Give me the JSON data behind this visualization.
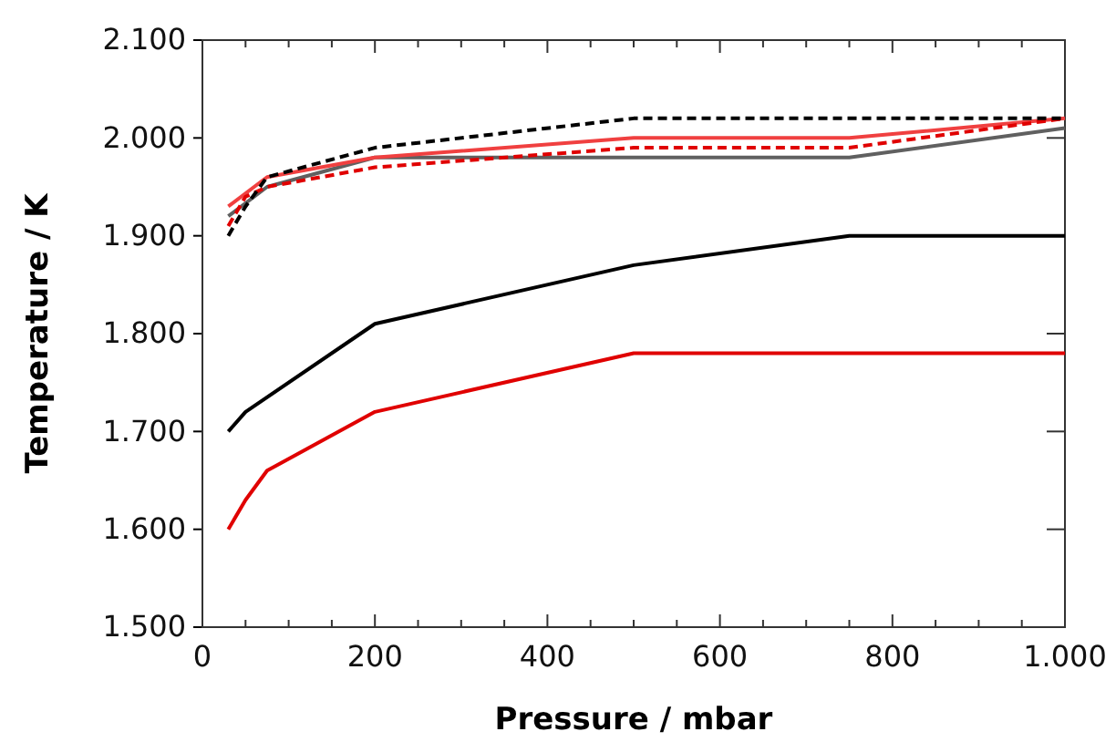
{
  "chart_data": {
    "type": "line",
    "xlabel": "Pressure / mbar",
    "ylabel": "Temperature / K",
    "xlim": [
      0,
      1000
    ],
    "ylim": [
      1500,
      2100
    ],
    "xticks": [
      0,
      {
        "value": 50,
        "label": null
      },
      {
        "value": 100,
        "label": null
      },
      {
        "value": 150,
        "label": null
      },
      200,
      {
        "value": 250,
        "label": null
      },
      {
        "value": 300,
        "label": null
      },
      {
        "value": 350,
        "label": null
      },
      400,
      {
        "value": 450,
        "label": null
      },
      {
        "value": 500,
        "label": null
      },
      {
        "value": 550,
        "label": null
      },
      600,
      {
        "value": 650,
        "label": null
      },
      {
        "value": 700,
        "label": null
      },
      {
        "value": 750,
        "label": null
      },
      800,
      {
        "value": 850,
        "label": null
      },
      {
        "value": 900,
        "label": null
      },
      {
        "value": 950,
        "label": null
      },
      {
        "value": 1000,
        "label": "1.000"
      }
    ],
    "yticks": [
      {
        "value": 1500,
        "label": "1.500"
      },
      {
        "value": 1600,
        "label": "1.600"
      },
      {
        "value": 1700,
        "label": "1.700"
      },
      {
        "value": 1800,
        "label": "1.800"
      },
      {
        "value": 1900,
        "label": "1.900"
      },
      {
        "value": 2000,
        "label": "2.000"
      },
      {
        "value": 2100,
        "label": "2.100"
      }
    ],
    "marker": "none",
    "series": [
      {
        "color": "#000000",
        "line_style": "solid",
        "x": [
          30,
          50,
          200,
          500,
          750,
          1000
        ],
        "values": [
          1700,
          1720,
          1810,
          1870,
          1900,
          1900
        ]
      },
      {
        "color": "#e00000",
        "line_style": "solid",
        "x": [
          30,
          50,
          75,
          200,
          500,
          1000
        ],
        "values": [
          1600,
          1630,
          1660,
          1720,
          1780,
          1780
        ]
      },
      {
        "color": "#606060",
        "line_style": "solid",
        "x": [
          30,
          75,
          200,
          750,
          1000
        ],
        "values": [
          1920,
          1950,
          1980,
          1980,
          2010
        ]
      },
      {
        "color": "#f04040",
        "line_style": "solid",
        "x": [
          30,
          75,
          200,
          500,
          750,
          1000
        ],
        "values": [
          1930,
          1960,
          1980,
          2000,
          2000,
          2020
        ]
      },
      {
        "color": "#e00000",
        "line_style": "dashed",
        "x": [
          30,
          50,
          75,
          200,
          500,
          750,
          1000
        ],
        "values": [
          1910,
          1940,
          1950,
          1970,
          1990,
          1990,
          2020
        ]
      },
      {
        "color": "#000000",
        "line_style": "dashed",
        "x": [
          30,
          50,
          75,
          200,
          500,
          1000
        ],
        "values": [
          1900,
          1930,
          1960,
          1990,
          2020,
          2020
        ]
      }
    ]
  }
}
